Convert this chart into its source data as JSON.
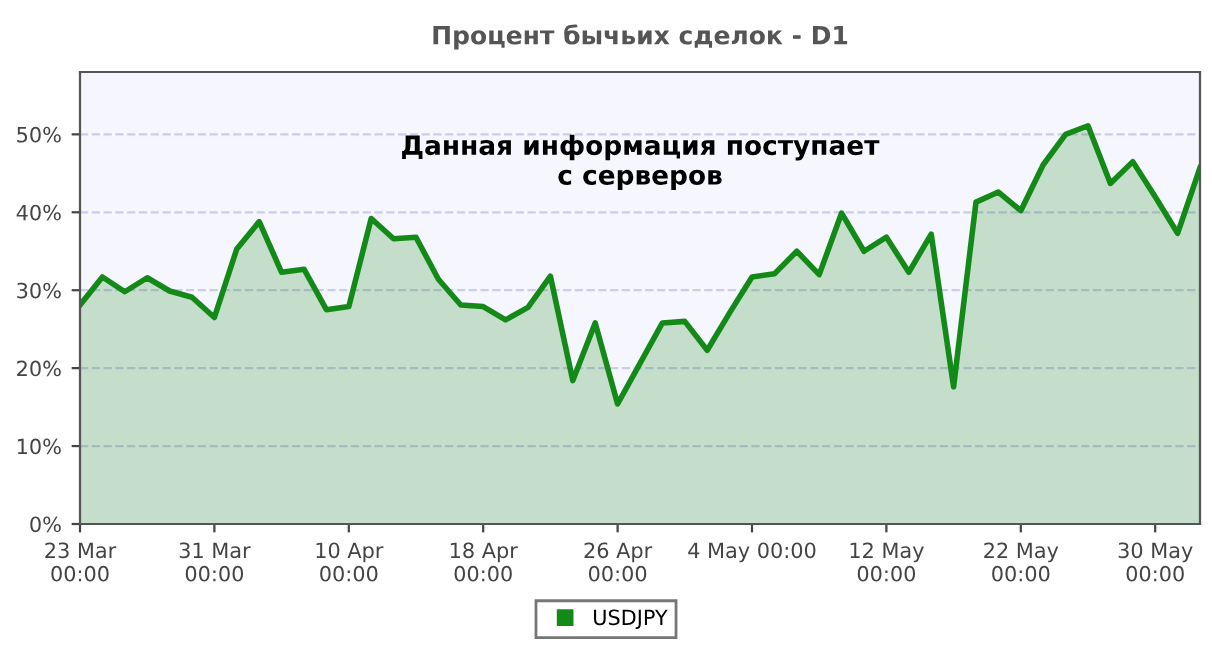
{
  "chart_data": {
    "type": "area",
    "title": "Процент бычьих сделок - D1",
    "categories": [
      "23 Mar\n00:00",
      null,
      null,
      null,
      null,
      null,
      "31 Mar\n00:00",
      null,
      null,
      null,
      null,
      null,
      "10 Apr\n00:00",
      null,
      null,
      null,
      null,
      null,
      "18 Apr\n00:00",
      null,
      null,
      null,
      null,
      null,
      "26 Apr\n00:00",
      null,
      null,
      null,
      null,
      null,
      "4 May 00:00",
      null,
      null,
      null,
      null,
      null,
      "12 May\n00:00",
      null,
      null,
      null,
      null,
      null,
      "22 May\n00:00",
      null,
      null,
      null,
      null,
      null,
      "30 May\n00:00",
      null,
      null
    ],
    "series": [
      {
        "name": "USDJPY",
        "color": "#138a17",
        "values": [
          28.1,
          31.7,
          29.8,
          31.6,
          29.9,
          29.1,
          26.5,
          35.3,
          38.8,
          32.3,
          32.7,
          27.5,
          27.9,
          39.2,
          36.6,
          36.8,
          31.4,
          28.1,
          27.9,
          26.2,
          27.8,
          31.8,
          18.4,
          25.8,
          15.4,
          20.6,
          25.8,
          26.0,
          22.3,
          27.1,
          31.7,
          32.1,
          35.0,
          32.0,
          39.9,
          35.0,
          36.8,
          32.3,
          37.2,
          17.6,
          41.3,
          42.6,
          40.2,
          46.1,
          50.0,
          51.1,
          43.7,
          46.5,
          42.0,
          37.3,
          45.7
        ]
      }
    ],
    "ylim": [
      0,
      58
    ],
    "yticks": [
      {
        "value": 0,
        "label": "0%"
      },
      {
        "value": 10,
        "label": "10%"
      },
      {
        "value": 20,
        "label": "20%"
      },
      {
        "value": 30,
        "label": "30%"
      },
      {
        "value": 40,
        "label": "40%"
      },
      {
        "value": 50,
        "label": "50%"
      }
    ],
    "grid": "y",
    "legend": "bottom",
    "marker": "none",
    "line_style": "solid",
    "annotations": [
      "Данная информация поступает\nс серверов"
    ]
  }
}
